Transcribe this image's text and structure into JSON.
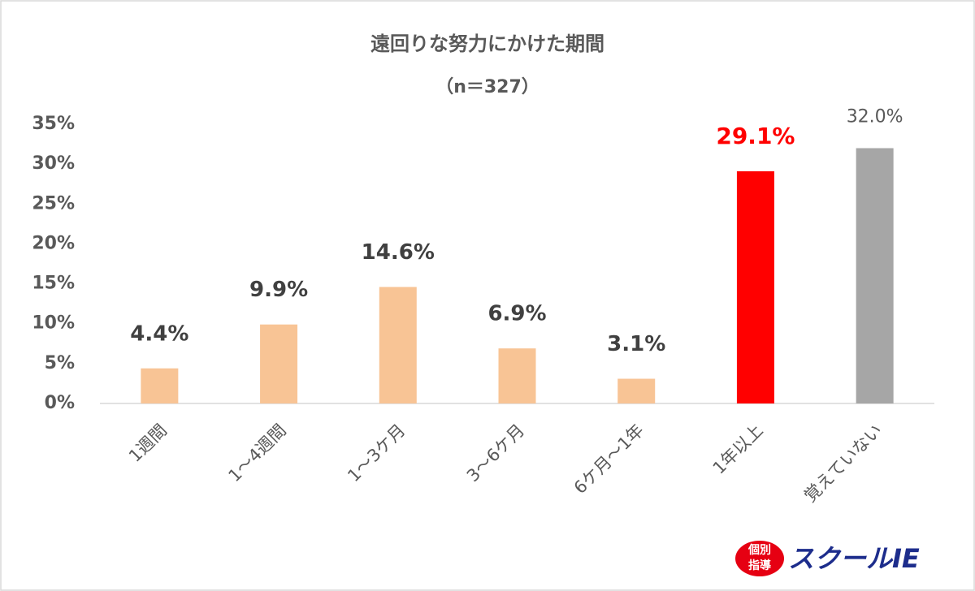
{
  "chart_data": {
    "type": "bar",
    "title": "遠回りな努力にかけた期間",
    "subtitle": "（n＝327）",
    "categories": [
      "1週間",
      "1～4週間",
      "1～3ケ月",
      "3～6ケ月",
      "6ケ月～1年",
      "1年以上",
      "覚えていない"
    ],
    "values": [
      4.4,
      9.9,
      14.6,
      6.9,
      3.1,
      29.1,
      32.0
    ],
    "value_labels": [
      "4.4%",
      "9.9%",
      "14.6%",
      "6.9%",
      "3.1%",
      "29.1%",
      "32.0%"
    ],
    "colors": [
      "#f8c495",
      "#f8c495",
      "#f8c495",
      "#f8c495",
      "#f8c495",
      "#ff0000",
      "#a6a6a6"
    ],
    "value_label_colors": [
      "#404040",
      "#404040",
      "#404040",
      "#404040",
      "#404040",
      "#ff0000",
      "#595959"
    ],
    "value_label_bold": [
      true,
      true,
      true,
      true,
      true,
      true,
      false
    ],
    "ylim": [
      0,
      35
    ],
    "yticks": [
      {
        "value": 0,
        "label": "0%"
      },
      {
        "value": 5,
        "label": "5%"
      },
      {
        "value": 10,
        "label": "10%"
      },
      {
        "value": 15,
        "label": "15%"
      },
      {
        "value": 20,
        "label": "20%"
      },
      {
        "value": 25,
        "label": "25%"
      },
      {
        "value": 30,
        "label": "30%"
      },
      {
        "value": 35,
        "label": "35%"
      }
    ],
    "grid": false,
    "logo": {
      "badge_top": "個別",
      "badge_bottom": "指導",
      "brand": "スクールIE"
    }
  }
}
